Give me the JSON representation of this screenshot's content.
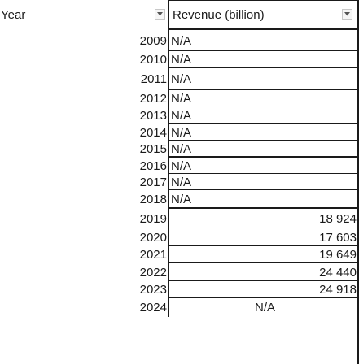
{
  "header": {
    "year_label": "Year",
    "revenue_label": "Revenue (billion)",
    "filter_icon": "dropdown-arrow-icon"
  },
  "rows": [
    {
      "year": "2009",
      "revenue": "N/A"
    },
    {
      "year": "2010",
      "revenue": "N/A"
    },
    {
      "year": "2011",
      "revenue": "N/A"
    },
    {
      "year": "2012",
      "revenue": "N/A"
    },
    {
      "year": "2013",
      "revenue": "N/A"
    },
    {
      "year": "2014",
      "revenue": "N/A"
    },
    {
      "year": "2015",
      "revenue": "N/A"
    },
    {
      "year": "2016",
      "revenue": "N/A"
    },
    {
      "year": "2017",
      "revenue": "N/A"
    },
    {
      "year": "2018",
      "revenue": "N/A"
    },
    {
      "year": "2019",
      "revenue": "18 924"
    },
    {
      "year": "2020",
      "revenue": "17 603"
    },
    {
      "year": "2021",
      "revenue": "19 649"
    },
    {
      "year": "2022",
      "revenue": "24 440"
    },
    {
      "year": "2023",
      "revenue": "24 918"
    },
    {
      "year": "2024",
      "revenue": "N/A"
    }
  ]
}
